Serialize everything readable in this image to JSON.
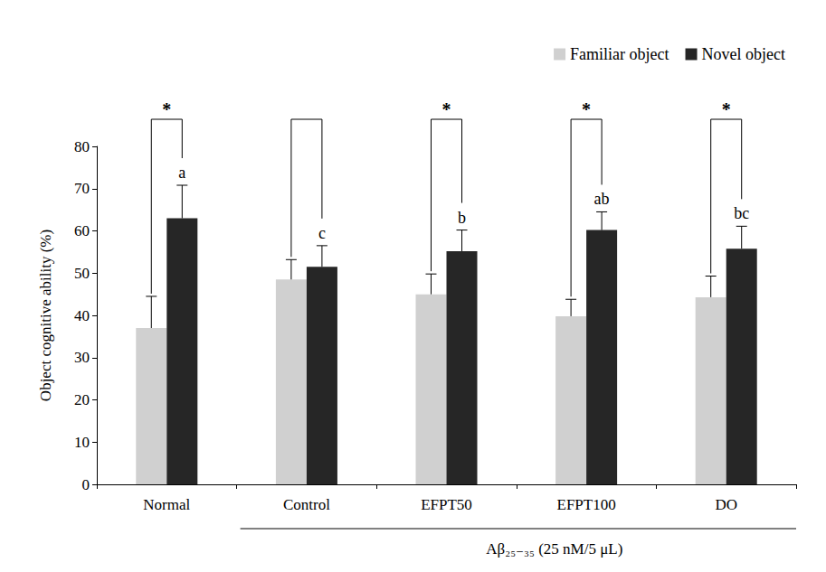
{
  "chart_data": {
    "type": "bar",
    "y_label": "Object cognitive ability (%)",
    "categories": [
      "Normal",
      "Control",
      "EFPT50",
      "EFPT100",
      "DO"
    ],
    "series": [
      {
        "name": "Familiar object",
        "color": "#d0d0d0",
        "values": [
          37.0,
          48.5,
          45.0,
          39.8,
          44.3
        ],
        "errors": [
          7.5,
          4.7,
          4.8,
          4.0,
          5.0
        ]
      },
      {
        "name": "Novel object",
        "color": "#262626",
        "values": [
          63.0,
          51.5,
          55.2,
          60.2,
          55.8
        ],
        "errors": [
          7.8,
          5.0,
          5.0,
          4.3,
          5.3
        ],
        "letters": [
          "a",
          "c",
          "b",
          "ab",
          "bc"
        ]
      }
    ],
    "significance": [
      "*",
      null,
      "*",
      "*",
      "*"
    ],
    "group_label": {
      "text": "Aβ₂₅₋₃₅ (25 nM/5 μL)",
      "categories": [
        "Control",
        "EFPT50",
        "EFPT100",
        "DO"
      ]
    },
    "ylim": [
      0,
      80
    ],
    "yticks": [
      0,
      10,
      20,
      30,
      40,
      50,
      60,
      70,
      80
    ],
    "legend": "top-right",
    "grid": false
  }
}
